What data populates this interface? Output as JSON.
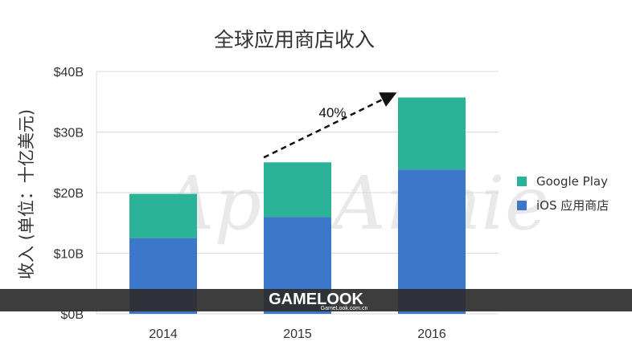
{
  "chart_data": {
    "type": "bar",
    "stacked": true,
    "title": "全球应用商店收入",
    "ylabel": "收入 (单位：十亿美元)",
    "xlabel": "",
    "categories": [
      "2014",
      "2015",
      "2016"
    ],
    "series": [
      {
        "name": "iOS 应用商店",
        "values": [
          12.5,
          16.0,
          23.8
        ],
        "color": "#3d77c9"
      },
      {
        "name": "Google Play",
        "values": [
          7.3,
          9.0,
          11.9
        ],
        "color": "#2bb39a"
      }
    ],
    "ylim": [
      0,
      40
    ],
    "yticks": [
      "$0B",
      "$10B",
      "$20B",
      "$30B",
      "$40B"
    ],
    "ytick_values": [
      0,
      10,
      20,
      30,
      40
    ],
    "grid": true,
    "legend": "right",
    "legend_order": [
      "Google Play",
      "iOS 应用商店"
    ],
    "annotation": {
      "text": "40%",
      "from": "2015",
      "to": "2016"
    }
  },
  "watermark": "App Annie",
  "banner": {
    "brand": "GAMELOOK",
    "url": "GameLook.com.cn"
  }
}
